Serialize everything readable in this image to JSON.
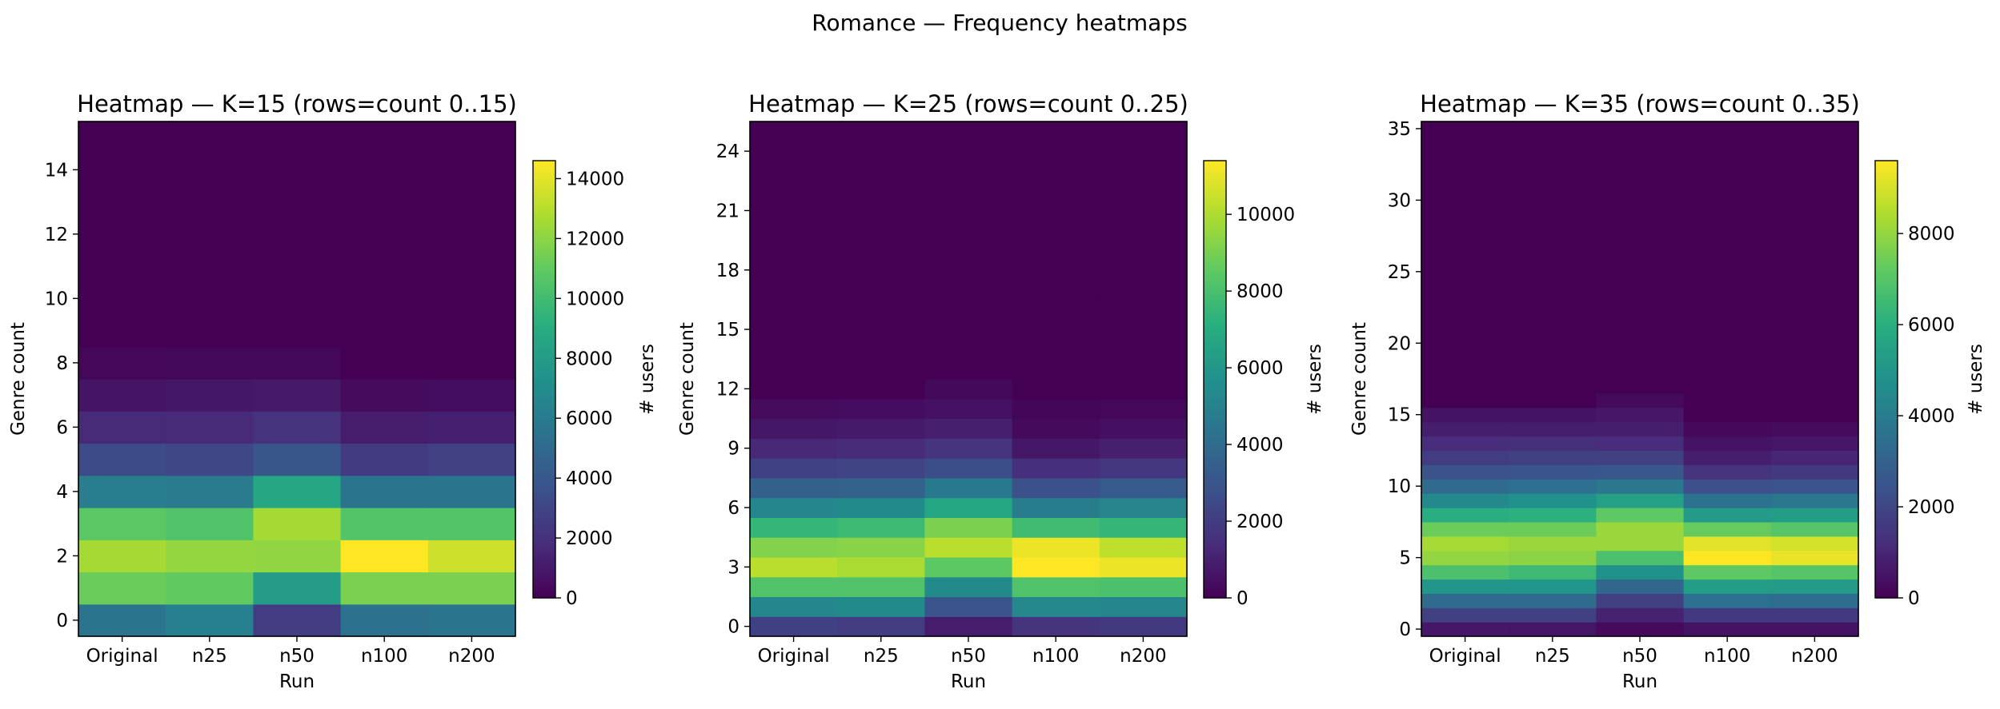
{
  "figure": {
    "title": "Romance — Frequency heatmaps",
    "colormap": "viridis"
  },
  "chart_data": [
    {
      "type": "heatmap",
      "title": "Heatmap — K=15 (rows=count 0..15)",
      "xlabel": "Run",
      "ylabel": "Genre count",
      "categories": [
        "Original",
        "n25",
        "n50",
        "n100",
        "n200"
      ],
      "y": [
        0,
        1,
        2,
        3,
        4,
        5,
        6,
        7,
        8,
        9,
        10,
        11,
        12,
        13,
        14,
        15
      ],
      "yticks": [
        0,
        2,
        4,
        6,
        8,
        10,
        12,
        14
      ],
      "ylim": [
        -0.5,
        15.5
      ],
      "colorbar": {
        "label": "# users",
        "range": [
          0,
          14600
        ],
        "ticks": [
          0,
          2000,
          4000,
          6000,
          8000,
          10000,
          12000,
          14000
        ]
      },
      "values": [
        [
          5600,
          6300,
          2600,
          5500,
          5600
        ],
        [
          11200,
          11000,
          8000,
          11600,
          11600
        ],
        [
          12600,
          12200,
          12100,
          14600,
          13500
        ],
        [
          10800,
          10500,
          12600,
          10600,
          10600
        ],
        [
          6200,
          6000,
          8600,
          5600,
          5600
        ],
        [
          3300,
          3100,
          3900,
          2500,
          2800
        ],
        [
          1700,
          1700,
          2100,
          1100,
          1300
        ],
        [
          800,
          900,
          1000,
          400,
          500
        ],
        [
          250,
          300,
          300,
          0,
          0
        ],
        [
          0,
          0,
          0,
          0,
          0
        ],
        [
          0,
          0,
          0,
          0,
          0
        ],
        [
          0,
          0,
          0,
          0,
          0
        ],
        [
          0,
          0,
          0,
          0,
          0
        ],
        [
          0,
          0,
          0,
          0,
          0
        ],
        [
          0,
          0,
          0,
          0,
          0
        ],
        [
          0,
          0,
          0,
          0,
          0
        ]
      ]
    },
    {
      "type": "heatmap",
      "title": "Heatmap — K=25 (rows=count 0..25)",
      "xlabel": "Run",
      "ylabel": "Genre count",
      "categories": [
        "Original",
        "n25",
        "n50",
        "n100",
        "n200"
      ],
      "y": [
        0,
        1,
        2,
        3,
        4,
        5,
        6,
        7,
        8,
        9,
        10,
        11,
        12,
        13,
        14,
        15,
        16,
        17,
        18,
        19,
        20,
        21,
        22,
        23,
        24,
        25
      ],
      "yticks": [
        0,
        3,
        6,
        9,
        12,
        15,
        18,
        21,
        24
      ],
      "ylim": [
        -0.5,
        25.5
      ],
      "colorbar": {
        "label": "# users",
        "range": [
          0,
          11400
        ],
        "ticks": [
          0,
          2000,
          4000,
          6000,
          8000,
          10000
        ]
      },
      "values": [
        [
          2200,
          2000,
          900,
          1700,
          1900
        ],
        [
          5200,
          5400,
          3000,
          5300,
          5200
        ],
        [
          8200,
          8200,
          5400,
          8200,
          8100
        ],
        [
          10200,
          9900,
          8500,
          11400,
          11100
        ],
        [
          9200,
          9300,
          10200,
          11100,
          10300
        ],
        [
          7500,
          7700,
          9100,
          7800,
          7500
        ],
        [
          5200,
          5400,
          6800,
          4800,
          5100
        ],
        [
          3500,
          3600,
          4600,
          2800,
          3200
        ],
        [
          2200,
          2300,
          2700,
          1500,
          1800
        ],
        [
          1300,
          1400,
          1700,
          700,
          1000
        ],
        [
          700,
          800,
          1000,
          300,
          500
        ],
        [
          350,
          400,
          550,
          150,
          200
        ],
        [
          0,
          0,
          250,
          0,
          0
        ],
        [
          0,
          0,
          0,
          0,
          0
        ],
        [
          0,
          0,
          0,
          0,
          0
        ],
        [
          0,
          0,
          0,
          0,
          0
        ],
        [
          0,
          0,
          0,
          0,
          0
        ],
        [
          0,
          0,
          0,
          0,
          0
        ],
        [
          0,
          0,
          0,
          0,
          0
        ],
        [
          0,
          0,
          0,
          0,
          0
        ],
        [
          0,
          0,
          0,
          0,
          0
        ],
        [
          0,
          0,
          0,
          0,
          0
        ],
        [
          0,
          0,
          0,
          0,
          0
        ],
        [
          0,
          0,
          0,
          0,
          0
        ],
        [
          0,
          0,
          0,
          0,
          0
        ],
        [
          0,
          0,
          0,
          0,
          0
        ]
      ]
    },
    {
      "type": "heatmap",
      "title": "Heatmap — K=35 (rows=count 0..35)",
      "xlabel": "Run",
      "ylabel": "Genre count",
      "categories": [
        "Original",
        "n25",
        "n50",
        "n100",
        "n200"
      ],
      "y": [
        0,
        1,
        2,
        3,
        4,
        5,
        6,
        7,
        8,
        9,
        10,
        11,
        12,
        13,
        14,
        15,
        16,
        17,
        18,
        19,
        20,
        21,
        22,
        23,
        24,
        25,
        26,
        27,
        28,
        29,
        30,
        31,
        32,
        33,
        34,
        35
      ],
      "yticks": [
        0,
        5,
        10,
        15,
        20,
        25,
        30,
        35
      ],
      "ylim": [
        -0.5,
        35.5
      ],
      "colorbar": {
        "label": "# users",
        "range": [
          0,
          9600
        ],
        "ticks": [
          0,
          2000,
          4000,
          6000,
          8000
        ]
      },
      "values": [
        [
          600,
          550,
          250,
          500,
          500
        ],
        [
          1800,
          1800,
          900,
          1600,
          1600
        ],
        [
          3300,
          3300,
          1800,
          3500,
          3400
        ],
        [
          5000,
          5000,
          3200,
          5300,
          5200
        ],
        [
          6800,
          6500,
          4800,
          7200,
          7000
        ],
        [
          8000,
          7900,
          6800,
          9600,
          9300
        ],
        [
          8300,
          8100,
          8100,
          9200,
          9000
        ],
        [
          7400,
          7400,
          8100,
          7300,
          7000
        ],
        [
          6000,
          6100,
          7200,
          5200,
          5300
        ],
        [
          4500,
          4800,
          5400,
          3600,
          3800
        ],
        [
          3300,
          3500,
          3800,
          2300,
          2500
        ],
        [
          2400,
          2500,
          2600,
          1400,
          1600
        ],
        [
          1700,
          1800,
          1800,
          800,
          1000
        ],
        [
          1200,
          1300,
          1200,
          500,
          600
        ],
        [
          800,
          800,
          800,
          200,
          300
        ],
        [
          500,
          500,
          600,
          0,
          0
        ],
        [
          0,
          0,
          250,
          0,
          0
        ],
        [
          0,
          0,
          0,
          0,
          0
        ],
        [
          0,
          0,
          0,
          0,
          0
        ],
        [
          0,
          0,
          0,
          0,
          0
        ],
        [
          0,
          0,
          0,
          0,
          0
        ],
        [
          0,
          0,
          0,
          0,
          0
        ],
        [
          0,
          0,
          0,
          0,
          0
        ],
        [
          0,
          0,
          0,
          0,
          0
        ],
        [
          0,
          0,
          0,
          0,
          0
        ],
        [
          0,
          0,
          0,
          0,
          0
        ],
        [
          0,
          0,
          0,
          0,
          0
        ],
        [
          0,
          0,
          0,
          0,
          0
        ],
        [
          0,
          0,
          0,
          0,
          0
        ],
        [
          0,
          0,
          0,
          0,
          0
        ],
        [
          0,
          0,
          0,
          0,
          0
        ],
        [
          0,
          0,
          0,
          0,
          0
        ],
        [
          0,
          0,
          0,
          0,
          0
        ],
        [
          0,
          0,
          0,
          0,
          0
        ],
        [
          0,
          0,
          0,
          0,
          0
        ],
        [
          0,
          0,
          0,
          0,
          0
        ]
      ]
    }
  ]
}
